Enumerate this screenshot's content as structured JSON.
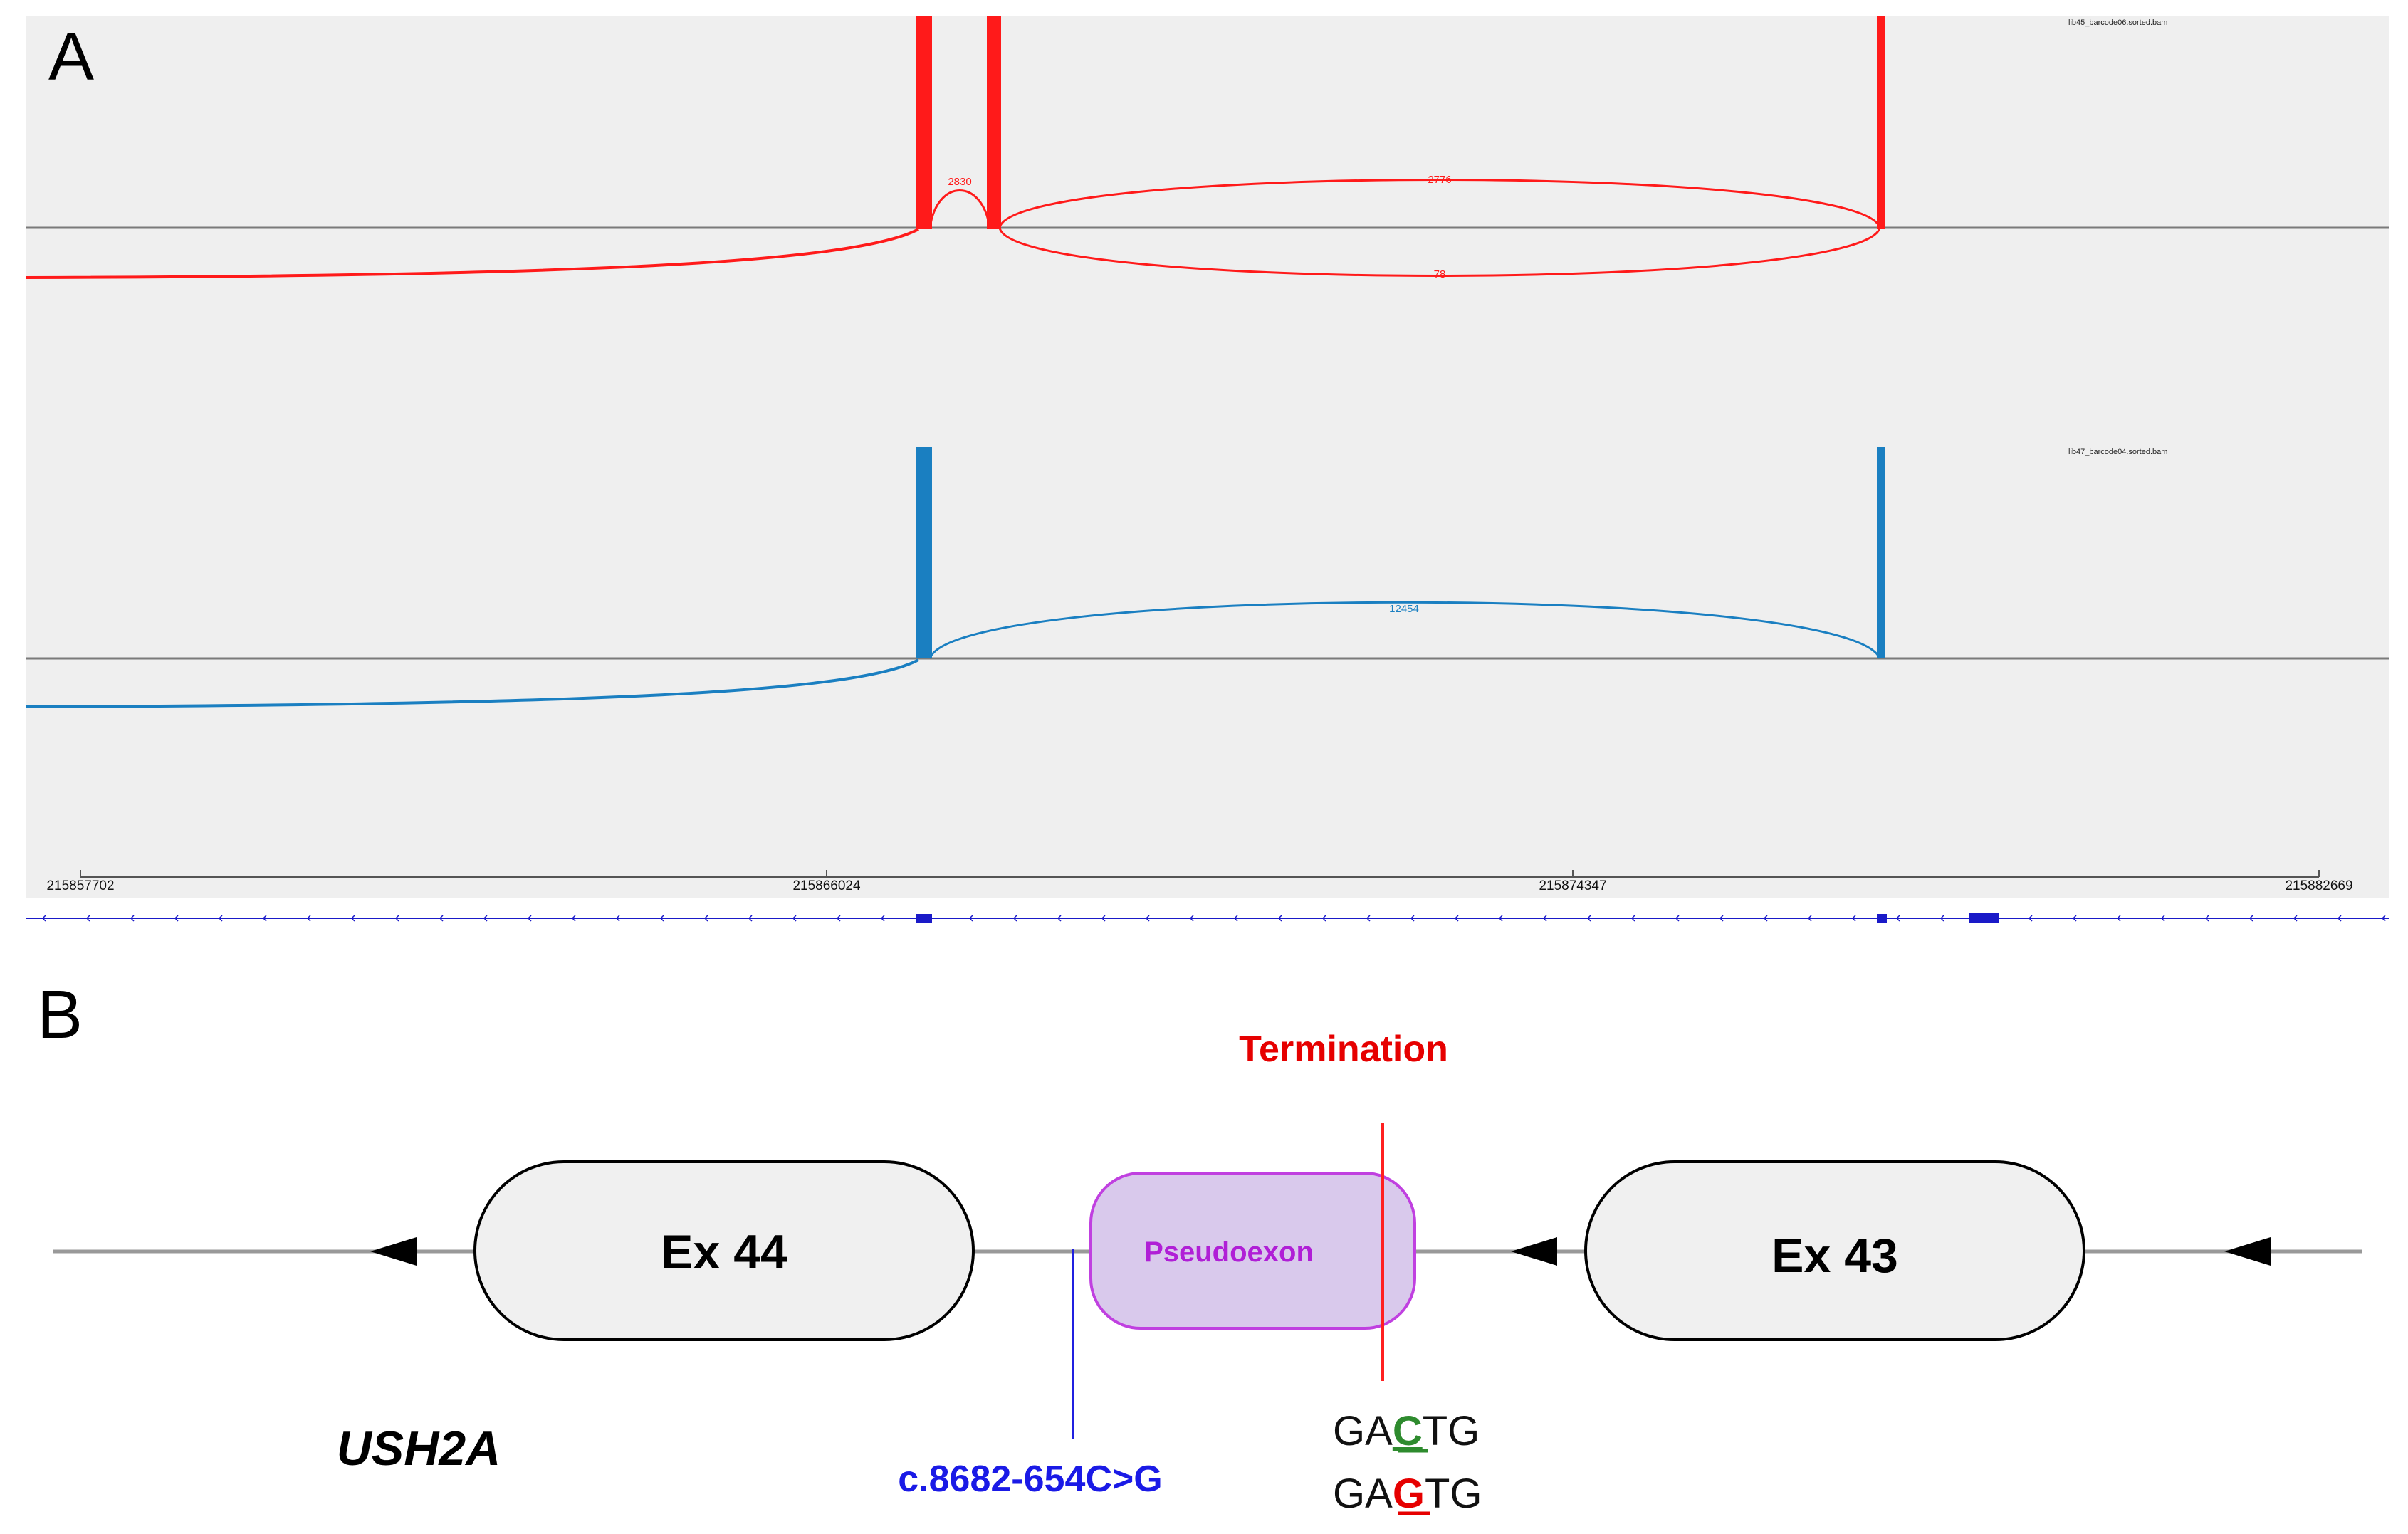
{
  "panel_a": {
    "label": "A",
    "tracks": [
      {
        "name": "lib45_barcode06.sorted.bam",
        "color": "#ff1a1a",
        "junctions": [
          {
            "label": "2830",
            "type": "short-arc"
          },
          {
            "label": "2776",
            "type": "long-arc-above"
          },
          {
            "label": "78",
            "type": "long-arc-below"
          }
        ]
      },
      {
        "name": "lib47_barcode04.sorted.bam",
        "color": "#1a7fc1",
        "junctions": [
          {
            "label": "12454",
            "type": "long-arc-above"
          }
        ]
      }
    ],
    "axis": {
      "ticks": [
        "215857702",
        "215866024",
        "215874347",
        "215882669"
      ]
    },
    "gene_track_color": "#1a1ac8"
  },
  "panel_b": {
    "label": "B",
    "gene_name": "USH2A",
    "exons": [
      {
        "label": "Ex 44"
      },
      {
        "label": "Ex 43"
      }
    ],
    "pseudoexon": {
      "label": "Pseudoexon",
      "fill": "#d9c9ec",
      "stroke": "#c040e0"
    },
    "termination_label": "Termination",
    "variant_label": "c.8682-654C>G",
    "sequences": [
      {
        "prefix": "GA",
        "base": "C",
        "suffix": "TG",
        "base_color": "#2e8b2e"
      },
      {
        "prefix": "GA",
        "base": "G",
        "suffix": "TG",
        "base_color": "#e60000"
      }
    ]
  }
}
